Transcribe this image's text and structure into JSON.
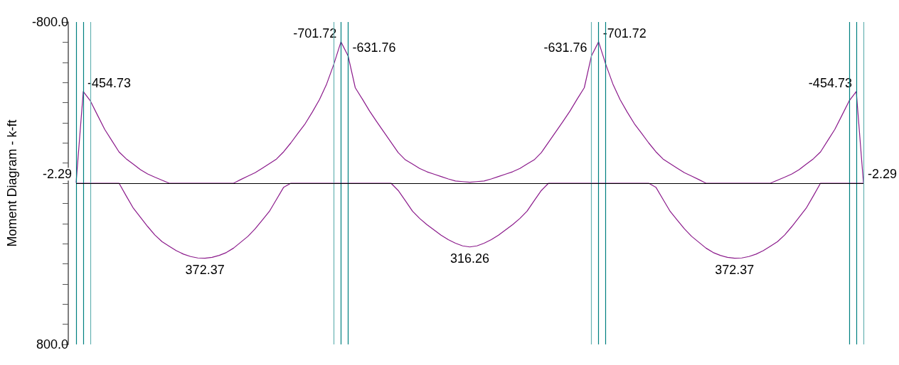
{
  "chart_data": {
    "type": "line",
    "ylabel": "Moment Diagram - k-ft",
    "categories": [
      null,
      null,
      null,
      null,
      null,
      null,
      null,
      null,
      null,
      null,
      null,
      null,
      null,
      null,
      null,
      null,
      null,
      null,
      null,
      null,
      null,
      null,
      null,
      null,
      null,
      null,
      null,
      null,
      null,
      null,
      null,
      null,
      null,
      null,
      null,
      null,
      null,
      null,
      null,
      null,
      null,
      null,
      null,
      null,
      null,
      null,
      null,
      null,
      null,
      null,
      null,
      null,
      null,
      null,
      null,
      null,
      null,
      null,
      null,
      null,
      null,
      null,
      null,
      null,
      null,
      null,
      null,
      null,
      null,
      null,
      null,
      null,
      null,
      null,
      null,
      null,
      null,
      null,
      null,
      null,
      null,
      null,
      null,
      null,
      null,
      null,
      null,
      null,
      null,
      null,
      null,
      null,
      null,
      null,
      null,
      null,
      null,
      null,
      null,
      null,
      null,
      null,
      null,
      null,
      null,
      null,
      null,
      null,
      null,
      null,
      null
    ],
    "ylim": [
      800,
      -800
    ],
    "yticks": [
      {
        "value": -800,
        "label": "-800.0"
      },
      {
        "value": -700,
        "label": null
      },
      {
        "value": -600,
        "label": null
      },
      {
        "value": -500,
        "label": null
      },
      {
        "value": -400,
        "label": null
      },
      {
        "value": -300,
        "label": null
      },
      {
        "value": -200,
        "label": null
      },
      {
        "value": -100,
        "label": null
      },
      {
        "value": 0,
        "label": null
      },
      {
        "value": 100,
        "label": null
      },
      {
        "value": 200,
        "label": null
      },
      {
        "value": 300,
        "label": null
      },
      {
        "value": 400,
        "label": null
      },
      {
        "value": 500,
        "label": null
      },
      {
        "value": 600,
        "label": null
      },
      {
        "value": 700,
        "label": null
      },
      {
        "value": 800,
        "label": "800.0"
      }
    ],
    "tick_labels": "y",
    "marker": "none",
    "series": [
      {
        "color": "#8b1a8b",
        "values": [
          -2.29,
          -454.73,
          -408,
          -337,
          -267,
          -211,
          -155,
          -121,
          -94,
          -67,
          -46,
          -30,
          -15,
          0,
          0,
          0,
          0,
          0,
          0,
          0,
          0,
          0,
          0,
          -18,
          -35,
          -52,
          -74,
          -97,
          -120,
          -156,
          -200,
          -248,
          -295,
          -353,
          -415,
          -492,
          -590,
          -701.72,
          -631.76,
          -474,
          -417,
          -358,
          -305,
          -254,
          -203,
          -152,
          -116,
          -95,
          -73,
          -57,
          -45,
          -33,
          -21,
          -11,
          -8,
          -5,
          -8,
          -11,
          -21,
          -33,
          -45,
          -57,
          -73,
          -95,
          -116,
          -152,
          -203,
          -254,
          -305,
          -358,
          -417,
          -474,
          -631.76,
          -701.72,
          -590,
          -492,
          -415,
          -353,
          -295,
          -248,
          -200,
          -156,
          -120,
          -97,
          -74,
          -52,
          -35,
          -18,
          0,
          0,
          0,
          0,
          0,
          0,
          0,
          0,
          0,
          0,
          -15,
          -30,
          -46,
          -67,
          -94,
          -121,
          -155,
          -211,
          -267,
          -337,
          -408,
          -454.73,
          -2.29
        ],
        "value_labels": [
          "-2.29",
          "-454.73",
          null,
          null,
          null,
          null,
          null,
          null,
          null,
          null,
          null,
          null,
          null,
          null,
          null,
          null,
          null,
          null,
          null,
          null,
          null,
          null,
          null,
          null,
          null,
          null,
          null,
          null,
          null,
          null,
          null,
          null,
          null,
          null,
          null,
          null,
          null,
          "-701.72",
          "-631.76",
          null,
          null,
          null,
          null,
          null,
          null,
          null,
          null,
          null,
          null,
          null,
          null,
          null,
          null,
          null,
          null,
          null,
          null,
          null,
          null,
          null,
          null,
          null,
          null,
          null,
          null,
          null,
          null,
          null,
          null,
          null,
          null,
          null,
          "-631.76",
          "-701.72",
          null,
          null,
          null,
          null,
          null,
          null,
          null,
          null,
          null,
          null,
          null,
          null,
          null,
          null,
          null,
          null,
          null,
          null,
          null,
          null,
          null,
          null,
          null,
          null,
          null,
          null,
          null,
          null,
          null,
          null,
          null,
          null,
          null,
          null,
          null,
          "-454.73",
          "-2.29"
        ]
      },
      {
        "color": "#8b1a8b",
        "values": [
          0,
          0,
          0,
          0,
          0,
          0,
          0,
          63,
          124,
          170,
          215,
          257,
          290,
          313,
          335,
          352,
          364,
          371,
          372.37,
          368,
          358,
          344,
          322,
          293,
          264,
          227,
          184,
          140,
          80,
          20,
          0,
          0,
          0,
          0,
          0,
          0,
          0,
          0,
          0,
          0,
          0,
          0,
          0,
          0,
          0,
          36,
          87,
          139,
          175,
          205,
          232,
          258,
          280,
          298,
          311,
          316.26,
          311,
          298,
          280,
          258,
          232,
          205,
          175,
          139,
          87,
          36,
          0,
          0,
          0,
          0,
          0,
          0,
          0,
          0,
          0,
          0,
          0,
          0,
          0,
          0,
          0,
          20,
          80,
          140,
          184,
          227,
          264,
          293,
          322,
          344,
          358,
          368,
          372.37,
          371,
          364,
          352,
          335,
          313,
          290,
          257,
          215,
          170,
          124,
          63,
          0,
          0,
          0,
          0,
          0,
          0,
          0
        ],
        "value_labels": [
          null,
          null,
          null,
          null,
          null,
          null,
          null,
          null,
          null,
          null,
          null,
          null,
          null,
          null,
          null,
          null,
          null,
          null,
          "372.37",
          null,
          null,
          null,
          null,
          null,
          null,
          null,
          null,
          null,
          null,
          null,
          null,
          null,
          null,
          null,
          null,
          null,
          null,
          null,
          null,
          null,
          null,
          null,
          null,
          null,
          null,
          null,
          null,
          null,
          null,
          null,
          null,
          null,
          null,
          null,
          null,
          "316.26",
          null,
          null,
          null,
          null,
          null,
          null,
          null,
          null,
          null,
          null,
          null,
          null,
          null,
          null,
          null,
          null,
          null,
          null,
          null,
          null,
          null,
          null,
          null,
          null,
          null,
          null,
          null,
          null,
          null,
          null,
          null,
          null,
          null,
          null,
          null,
          null,
          "372.37",
          null,
          null,
          null,
          null,
          null,
          null,
          null,
          null,
          null,
          null,
          null,
          null,
          null,
          null,
          null,
          null,
          null,
          null
        ]
      }
    ],
    "ref_lines": [
      {
        "axis": "y",
        "value": 0,
        "color": "#000000"
      }
    ],
    "grid": "x"
  }
}
